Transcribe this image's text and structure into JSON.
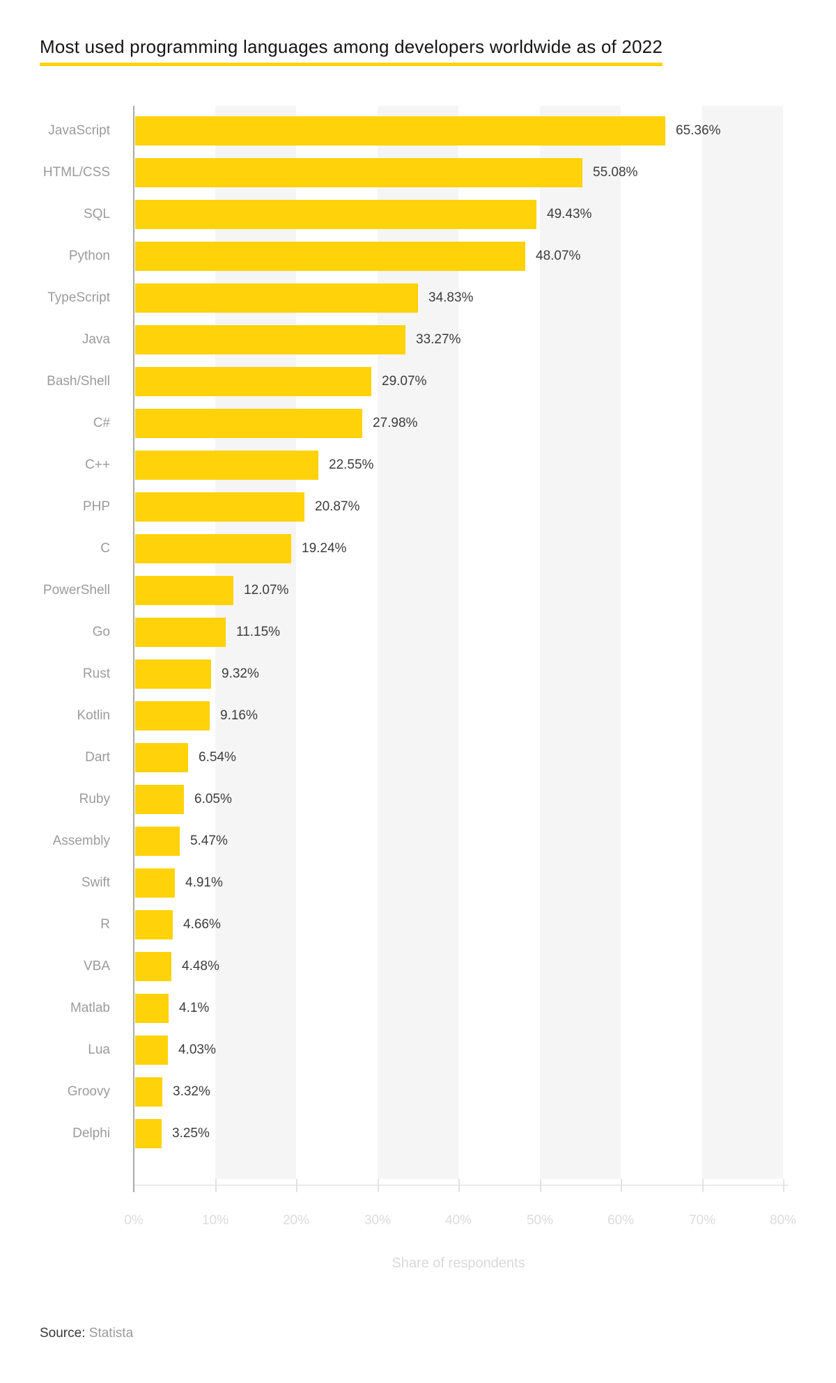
{
  "page": {
    "background": "#ffffff"
  },
  "source": {
    "prefix": "Source:",
    "name": "Statista"
  },
  "chart_data": {
    "type": "bar",
    "orientation": "horizontal",
    "title": "Most used programming languages among developers worldwide as of 2022",
    "categories": [
      "JavaScript",
      "HTML/CSS",
      "SQL",
      "Python",
      "TypeScript",
      "Java",
      "Bash/Shell",
      "C#",
      "C++",
      "PHP",
      "C",
      "PowerShell",
      "Go",
      "Rust",
      "Kotlin",
      "Dart",
      "Ruby",
      "Assembly",
      "Swift",
      "R",
      "VBA",
      "Matlab",
      "Lua",
      "Groovy",
      "Delphi"
    ],
    "values": [
      65.36,
      55.08,
      49.43,
      48.07,
      34.83,
      33.27,
      29.07,
      27.98,
      22.55,
      20.87,
      19.24,
      12.07,
      11.15,
      9.32,
      9.16,
      6.54,
      6.05,
      5.47,
      4.91,
      4.66,
      4.48,
      4.1,
      4.03,
      3.32,
      3.25
    ],
    "value_labels": [
      "65.36%",
      "55.08%",
      "49.43%",
      "48.07%",
      "34.83%",
      "33.27%",
      "29.07%",
      "27.98%",
      "22.55%",
      "20.87%",
      "19.24%",
      "12.07%",
      "11.15%",
      "9.32%",
      "9.16%",
      "6.54%",
      "6.05%",
      "5.47%",
      "4.91%",
      "4.66%",
      "4.48%",
      "4.1%",
      "4.03%",
      "3.32%",
      "3.25%"
    ],
    "xlabel": "Share of respondents",
    "xlim": [
      0,
      80
    ],
    "x_tick_labels": [
      "0%",
      "10%",
      "20%",
      "30%",
      "40%",
      "50%",
      "60%",
      "70%",
      "80%"
    ],
    "grid": "alternating vertical bands, legend none",
    "colors": {
      "bar": "#ffd20a",
      "band": "#f5f5f5",
      "category_label": "#9b9b9b",
      "value_label": "#3c3c3c",
      "tick_label": "#dcdcdc",
      "axis_title": "#d9d9d9",
      "y_axis_line": "#a9a9a9",
      "x_axis_line": "#eaeaea",
      "title_text": "#161616",
      "source_prefix": "#383838",
      "source_name": "#9b9b9b"
    }
  }
}
